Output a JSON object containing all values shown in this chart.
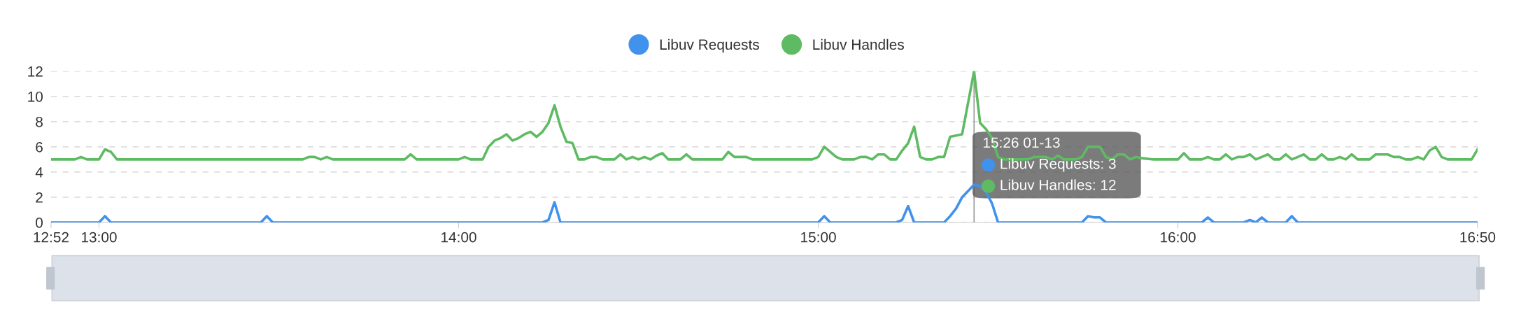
{
  "chart_data": {
    "type": "line",
    "xlim": [
      12.8667,
      16.8333
    ],
    "xticks": [
      {
        "value": 12.8667,
        "label": "12:52"
      },
      {
        "value": 13,
        "label": "13:00"
      },
      {
        "value": 14,
        "label": "14:00"
      },
      {
        "value": 15,
        "label": "15:00"
      },
      {
        "value": 16,
        "label": "16:00"
      },
      {
        "value": 16.8333,
        "label": "16:50"
      }
    ],
    "ylim": [
      0,
      12
    ],
    "yticks": [
      0,
      2,
      4,
      6,
      8,
      10,
      12
    ],
    "grid": "y",
    "legend": "top",
    "marker": "none",
    "line_style": "solid",
    "ref_lines": [
      {
        "axis": "x",
        "value": 15.4333,
        "color": "#999999"
      }
    ],
    "annotations": [
      "15:26 01-13",
      "Libuv Requests: 3",
      "Libuv Handles: 12"
    ],
    "series": [
      {
        "name": "Libuv Requests",
        "color": "#4092ec",
        "x": [
          12.8667,
          13,
          13.0167,
          13.0333,
          13.45,
          13.4667,
          13.4833,
          14.2333,
          14.25,
          14.2667,
          14.2833,
          15,
          15.0167,
          15.0333,
          15.2167,
          15.2333,
          15.25,
          15.2667,
          15.35,
          15.3667,
          15.3833,
          15.4,
          15.4167,
          15.4333,
          15.45,
          15.4667,
          15.4833,
          15.5,
          15.7333,
          15.75,
          15.7667,
          15.7833,
          15.8,
          16.0667,
          16.0833,
          16.1,
          16.1833,
          16.2,
          16.2167,
          16.2333,
          16.25,
          16.3,
          16.3167,
          16.3333,
          16.8333
        ],
        "values": [
          0,
          0,
          0.5,
          0,
          0,
          0.5,
          0,
          0,
          0.2,
          1.6,
          0,
          0,
          0.5,
          0,
          0,
          0.2,
          1.3,
          0,
          0,
          0.5,
          1.1,
          2,
          2.5,
          3,
          2.9,
          2.4,
          1.5,
          0,
          0,
          0.5,
          0.4,
          0.4,
          0,
          0,
          0.4,
          0,
          0,
          0.2,
          0,
          0.4,
          0,
          0,
          0.5,
          0,
          0
        ]
      },
      {
        "name": "Libuv Handles",
        "color": "#5fbb63",
        "x": [
          12.8667,
          12.9333,
          12.95,
          12.9667,
          13,
          13.0167,
          13.0333,
          13.05,
          13.5667,
          13.5833,
          13.6,
          13.6167,
          13.6333,
          13.65,
          13.85,
          13.8667,
          13.8833,
          14,
          14.0167,
          14.0333,
          14.0667,
          14.0833,
          14.1,
          14.1167,
          14.1333,
          14.15,
          14.1667,
          14.1833,
          14.2,
          14.2167,
          14.2333,
          14.25,
          14.2667,
          14.2833,
          14.3,
          14.3167,
          14.3333,
          14.35,
          14.3667,
          14.3833,
          14.4,
          14.4333,
          14.45,
          14.4667,
          14.4833,
          14.5,
          14.5167,
          14.5333,
          14.55,
          14.5667,
          14.5833,
          14.6167,
          14.6333,
          14.65,
          14.7333,
          14.75,
          14.7667,
          14.7833,
          14.8,
          14.8167,
          14.9833,
          15,
          15.0167,
          15.0333,
          15.05,
          15.0667,
          15.1,
          15.1167,
          15.1333,
          15.15,
          15.1667,
          15.1833,
          15.2,
          15.2167,
          15.2333,
          15.25,
          15.2667,
          15.2833,
          15.3,
          15.3167,
          15.3333,
          15.35,
          15.3667,
          15.3833,
          15.4,
          15.4333,
          15.45,
          15.4667,
          15.4833,
          15.5,
          15.5167,
          15.5833,
          15.6,
          15.6333,
          15.65,
          15.6667,
          15.6833,
          15.7167,
          15.7333,
          15.75,
          15.7833,
          15.8,
          15.8167,
          15.8333,
          15.85,
          15.8667,
          15.8833,
          15.9,
          15.9333,
          16,
          16.0167,
          16.0333,
          16.0667,
          16.0833,
          16.1,
          16.1167,
          16.1333,
          16.15,
          16.1667,
          16.1833,
          16.2,
          16.2167,
          16.2333,
          16.25,
          16.2667,
          16.2833,
          16.3,
          16.3167,
          16.3333,
          16.35,
          16.3667,
          16.3833,
          16.4,
          16.4167,
          16.4333,
          16.45,
          16.4667,
          16.4833,
          16.5,
          16.5333,
          16.55,
          16.5833,
          16.6,
          16.6167,
          16.6333,
          16.65,
          16.6667,
          16.6833,
          16.7,
          16.7167,
          16.7333,
          16.75,
          16.8167,
          16.8333
        ],
        "values": [
          5,
          5,
          5.2,
          5,
          5,
          5.8,
          5.6,
          5,
          5,
          5.2,
          5.2,
          5,
          5.2,
          5,
          5,
          5.4,
          5,
          5,
          5.2,
          5,
          5,
          6,
          6.5,
          6.7,
          7,
          6.5,
          6.7,
          7,
          7.2,
          6.8,
          7.2,
          7.9,
          9.3,
          7.6,
          6.4,
          6.3,
          5,
          5,
          5.2,
          5.2,
          5,
          5,
          5.4,
          5,
          5.2,
          5,
          5.2,
          5,
          5.3,
          5.5,
          5,
          5,
          5.4,
          5,
          5,
          5.6,
          5.2,
          5.2,
          5.2,
          5,
          5,
          5.2,
          6,
          5.6,
          5.2,
          5,
          5,
          5.2,
          5.2,
          5,
          5.4,
          5.4,
          5,
          5,
          5.7,
          6.3,
          7.6,
          5.2,
          5,
          5,
          5.2,
          5.2,
          6.8,
          6.9,
          7,
          12,
          7.9,
          7.4,
          6.7,
          5.2,
          5,
          5,
          5.2,
          5.2,
          5,
          5.3,
          5,
          5,
          5.2,
          6,
          6,
          5.2,
          5,
          5.4,
          5.4,
          5,
          5.2,
          5.1,
          5,
          5,
          5.5,
          5,
          5,
          5.2,
          5,
          5,
          5.4,
          5,
          5.2,
          5.2,
          5.4,
          5,
          5.2,
          5.4,
          5,
          5,
          5.4,
          5,
          5.2,
          5.4,
          5,
          5,
          5.4,
          5,
          5,
          5.2,
          5,
          5.4,
          5,
          5,
          5.4,
          5.4,
          5.2,
          5.2,
          5,
          5,
          5.2,
          5,
          5.7,
          6,
          5.2,
          5,
          5,
          5.8
        ]
      }
    ]
  }
}
